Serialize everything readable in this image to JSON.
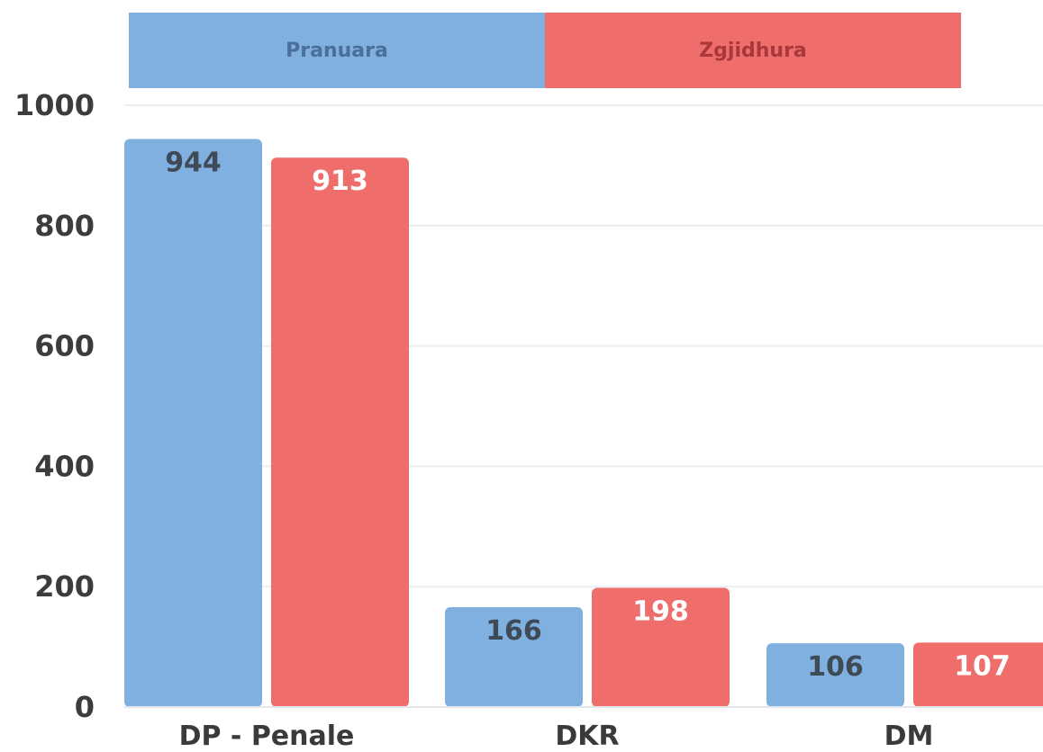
{
  "chart_data": {
    "type": "bar",
    "categories": [
      "DP - Penale",
      "DKR",
      "DM"
    ],
    "series": [
      {
        "name": "Pranuara",
        "values": [
          944,
          166,
          106
        ],
        "color": "#7fb0df",
        "label_color": "#3f4a57"
      },
      {
        "name": "Zgjidhura",
        "values": [
          913,
          198,
          107
        ],
        "color": "#ef6e6c",
        "label_color": "#ffffff"
      }
    ],
    "yticks": [
      0,
      200,
      400,
      600,
      800,
      1000
    ],
    "ylim": [
      0,
      1000
    ],
    "grid": true,
    "legend_position": "top"
  }
}
